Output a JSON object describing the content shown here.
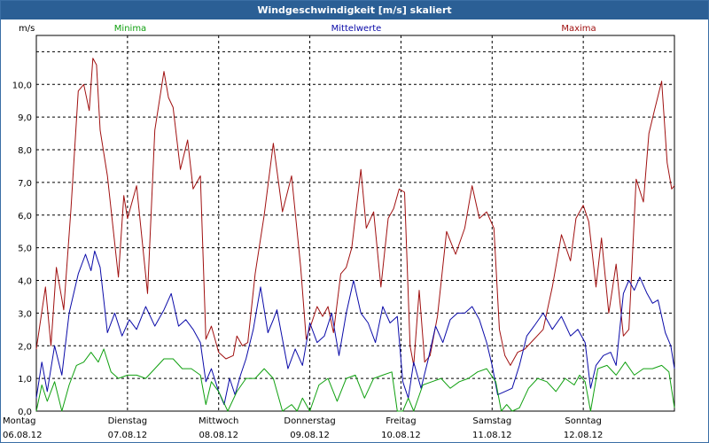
{
  "window": {
    "title": "Windgeschwindigkeit [m/s] skaliert"
  },
  "chart_data": {
    "type": "line",
    "title": "Windgeschwindigkeit [m/s] skaliert",
    "ylabel": "m/s",
    "ylim": [
      0,
      11.5
    ],
    "yticks": [
      0,
      1,
      2,
      3,
      4,
      5,
      6,
      7,
      8,
      9,
      10
    ],
    "ytick_labels": [
      "0,0",
      "1,0",
      "2,0",
      "3,0",
      "4,0",
      "5,0",
      "6,0",
      "7,0",
      "8,0",
      "9,0",
      "10,0"
    ],
    "x_unit": "days since 06.08.12 00:00",
    "xlim": [
      0,
      7
    ],
    "grid": true,
    "day_labels": [
      {
        "day": "Montag",
        "date": "06.08.12"
      },
      {
        "day": "Dienstag",
        "date": "07.08.12"
      },
      {
        "day": "Mittwoch",
        "date": "08.08.12"
      },
      {
        "day": "Donnerstag",
        "date": "09.08.12"
      },
      {
        "day": "Freitag",
        "date": "10.08.12"
      },
      {
        "day": "Samstag",
        "date": "11.08.12"
      },
      {
        "day": "Sonntag",
        "date": "12.08.12"
      }
    ],
    "series": [
      {
        "name": "Maxima",
        "color": "#a01010",
        "x": [
          0,
          0.1,
          0.16,
          0.22,
          0.3,
          0.38,
          0.46,
          0.52,
          0.58,
          0.62,
          0.66,
          0.7,
          0.78,
          0.9,
          0.96,
          1.0,
          1.1,
          1.22,
          1.3,
          1.4,
          1.45,
          1.5,
          1.58,
          1.66,
          1.72,
          1.8,
          1.86,
          1.92,
          2.0,
          2.08,
          2.16,
          2.2,
          2.26,
          2.32,
          2.4,
          2.5,
          2.6,
          2.7,
          2.8,
          2.9,
          2.96,
          3.02,
          3.08,
          3.14,
          3.2,
          3.26,
          3.34,
          3.4,
          3.46,
          3.56,
          3.62,
          3.7,
          3.78,
          3.86,
          3.92,
          3.98,
          4.04,
          4.1,
          4.14,
          4.2,
          4.26,
          4.32,
          4.4,
          4.5,
          4.6,
          4.7,
          4.78,
          4.86,
          4.94,
          5.02,
          5.08,
          5.14,
          5.2,
          5.28,
          5.36,
          5.46,
          5.56,
          5.66,
          5.76,
          5.86,
          5.92,
          6.0,
          6.06,
          6.14,
          6.2,
          6.28,
          6.36,
          6.44,
          6.5,
          6.58,
          6.66,
          6.72,
          6.78,
          6.86,
          6.92,
          6.97,
          7.0
        ],
        "values": [
          1.9,
          3.8,
          2.0,
          4.4,
          3.1,
          6.2,
          9.8,
          10.0,
          9.2,
          10.8,
          10.6,
          8.6,
          7.2,
          4.1,
          6.6,
          5.9,
          6.9,
          3.6,
          8.6,
          10.4,
          9.6,
          9.3,
          7.4,
          8.3,
          6.8,
          7.2,
          2.2,
          2.6,
          1.8,
          1.6,
          1.7,
          2.3,
          2.0,
          2.1,
          4.2,
          6.0,
          8.2,
          6.1,
          7.2,
          4.4,
          2.2,
          2.7,
          3.2,
          2.9,
          3.2,
          2.4,
          4.2,
          4.4,
          5.0,
          7.4,
          5.6,
          6.1,
          3.8,
          5.9,
          6.2,
          6.8,
          6.7,
          2.0,
          1.4,
          3.7,
          1.5,
          1.7,
          2.9,
          5.5,
          4.8,
          5.6,
          6.9,
          5.9,
          6.1,
          5.6,
          2.5,
          1.7,
          1.4,
          1.8,
          1.9,
          2.2,
          2.5,
          3.8,
          5.4,
          4.6,
          5.9,
          6.3,
          5.8,
          3.8,
          5.3,
          3.0,
          4.5,
          2.3,
          2.5,
          7.1,
          6.4,
          8.5,
          9.2,
          10.1,
          7.6,
          6.8,
          6.9
        ]
      },
      {
        "name": "Mittelwerte",
        "color": "#0a0aa8",
        "x": [
          0,
          0.06,
          0.12,
          0.2,
          0.28,
          0.36,
          0.46,
          0.54,
          0.6,
          0.64,
          0.7,
          0.78,
          0.86,
          0.94,
          1.02,
          1.1,
          1.2,
          1.3,
          1.4,
          1.48,
          1.56,
          1.64,
          1.72,
          1.8,
          1.86,
          1.92,
          2.0,
          2.06,
          2.12,
          2.18,
          2.24,
          2.3,
          2.38,
          2.46,
          2.54,
          2.6,
          2.64,
          2.7,
          2.76,
          2.84,
          2.92,
          3.0,
          3.08,
          3.16,
          3.24,
          3.32,
          3.4,
          3.48,
          3.56,
          3.64,
          3.72,
          3.8,
          3.88,
          3.96,
          4.02,
          4.08,
          4.14,
          4.22,
          4.3,
          4.38,
          4.46,
          4.54,
          4.62,
          4.7,
          4.78,
          4.86,
          4.94,
          5.0,
          5.06,
          5.14,
          5.22,
          5.3,
          5.38,
          5.46,
          5.56,
          5.66,
          5.76,
          5.86,
          5.94,
          6.02,
          6.08,
          6.14,
          6.22,
          6.3,
          6.36,
          6.44,
          6.5,
          6.56,
          6.62,
          6.7,
          6.76,
          6.82,
          6.9,
          6.96,
          7.0
        ],
        "values": [
          0.4,
          1.5,
          0.6,
          2.0,
          1.1,
          3.0,
          4.2,
          4.8,
          4.3,
          4.9,
          4.4,
          2.4,
          3.0,
          2.3,
          2.8,
          2.5,
          3.2,
          2.6,
          3.1,
          3.6,
          2.6,
          2.8,
          2.5,
          2.1,
          0.9,
          1.3,
          0.6,
          0.2,
          1.0,
          0.5,
          1.1,
          1.6,
          2.5,
          3.8,
          2.4,
          2.8,
          3.1,
          2.2,
          1.3,
          1.9,
          1.4,
          2.7,
          2.1,
          2.3,
          3.0,
          1.7,
          3.0,
          4.0,
          3.0,
          2.7,
          2.1,
          3.2,
          2.7,
          2.9,
          0.9,
          0.4,
          1.5,
          0.7,
          1.6,
          2.6,
          2.1,
          2.8,
          3.0,
          3.0,
          3.2,
          2.8,
          2.1,
          1.4,
          0.5,
          0.6,
          0.7,
          1.4,
          2.3,
          2.6,
          3.0,
          2.5,
          2.9,
          2.3,
          2.5,
          2.1,
          0.7,
          1.4,
          1.7,
          1.8,
          1.4,
          3.6,
          4.0,
          3.7,
          4.1,
          3.6,
          3.3,
          3.4,
          2.4,
          2.0,
          1.3
        ]
      },
      {
        "name": "Minima",
        "color": "#10a010",
        "x": [
          0,
          0.06,
          0.12,
          0.2,
          0.28,
          0.36,
          0.44,
          0.52,
          0.6,
          0.68,
          0.74,
          0.82,
          0.9,
          1.0,
          1.1,
          1.2,
          1.3,
          1.4,
          1.5,
          1.6,
          1.7,
          1.8,
          1.86,
          1.92,
          2.0,
          2.1,
          2.2,
          2.3,
          2.4,
          2.5,
          2.6,
          2.7,
          2.8,
          2.86,
          2.92,
          3.0,
          3.1,
          3.2,
          3.3,
          3.4,
          3.5,
          3.6,
          3.7,
          3.8,
          3.9,
          3.96,
          4.02,
          4.08,
          4.14,
          4.24,
          4.34,
          4.44,
          4.54,
          4.64,
          4.74,
          4.84,
          4.94,
          5.04,
          5.1,
          5.16,
          5.22,
          5.3,
          5.4,
          5.5,
          5.6,
          5.7,
          5.8,
          5.9,
          5.96,
          6.02,
          6.08,
          6.16,
          6.26,
          6.36,
          6.46,
          6.56,
          6.66,
          6.76,
          6.86,
          6.94,
          7.0
        ],
        "values": [
          0.0,
          0.8,
          0.3,
          0.9,
          0.0,
          0.8,
          1.4,
          1.5,
          1.8,
          1.5,
          1.9,
          1.2,
          1.0,
          1.1,
          1.1,
          1.0,
          1.3,
          1.6,
          1.6,
          1.3,
          1.3,
          1.1,
          0.2,
          0.9,
          0.6,
          0.0,
          0.6,
          1.0,
          1.0,
          1.3,
          1.0,
          0.0,
          0.2,
          0.0,
          0.4,
          0.0,
          0.8,
          1.0,
          0.3,
          1.0,
          1.1,
          0.4,
          1.0,
          1.1,
          1.2,
          0.0,
          0.0,
          0.4,
          0.0,
          0.8,
          0.9,
          1.0,
          0.7,
          0.9,
          1.0,
          1.2,
          1.3,
          0.9,
          0.0,
          0.2,
          0.0,
          0.1,
          0.7,
          1.0,
          0.9,
          0.6,
          1.0,
          0.8,
          1.1,
          0.9,
          0.0,
          1.3,
          1.4,
          1.1,
          1.5,
          1.1,
          1.3,
          1.3,
          1.4,
          1.2,
          0.1
        ]
      }
    ]
  }
}
